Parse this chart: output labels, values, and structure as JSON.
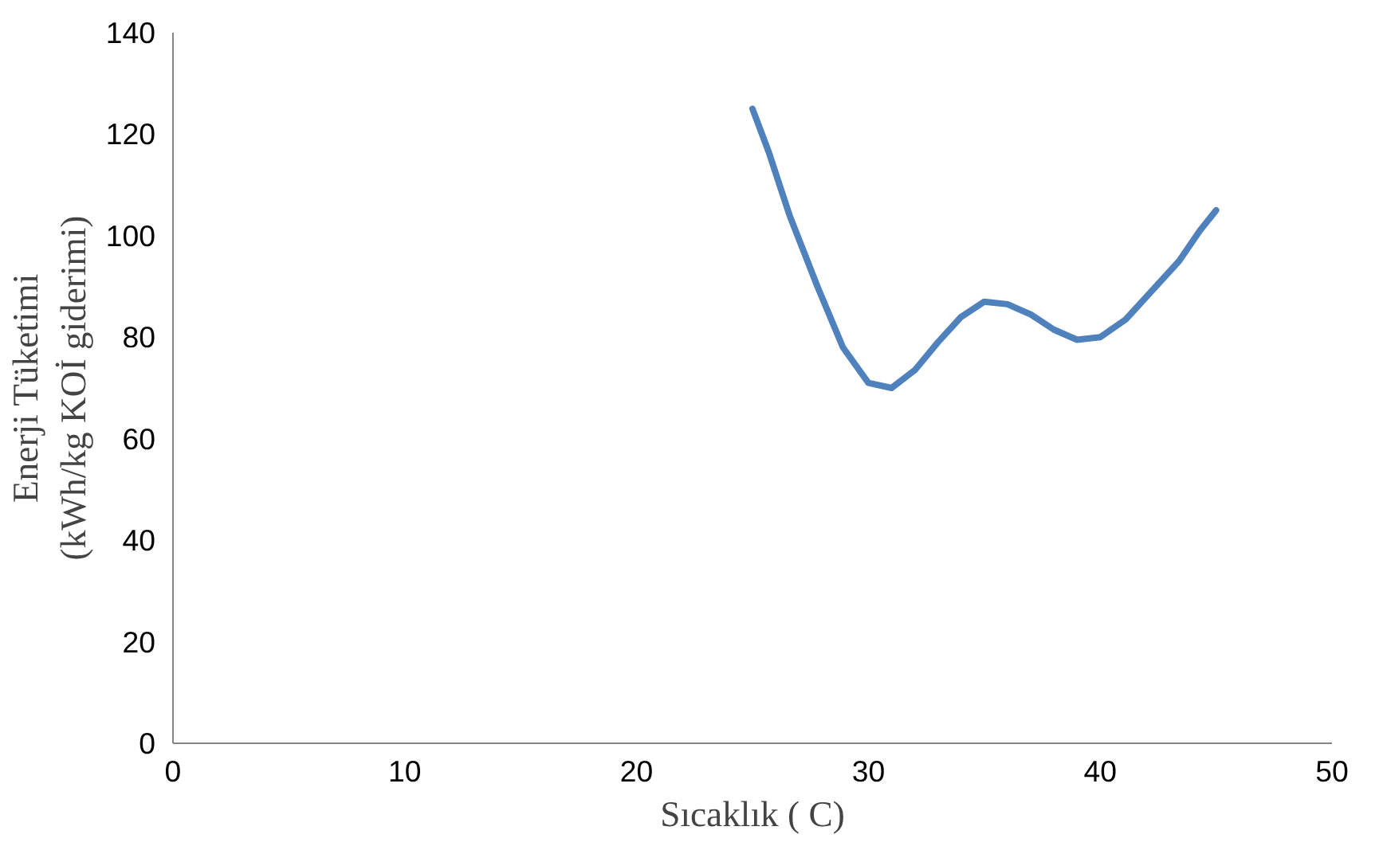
{
  "chart_data": {
    "type": "line",
    "xlabel": "Sıcaklık ( C)",
    "ylabel": "Enerji Tüketimi\n(kWh/kg KOİ giderimi)",
    "x": [
      25,
      25.7,
      26.6,
      27.8,
      28.9,
      30,
      31,
      32,
      33,
      34,
      35,
      36,
      37,
      38,
      39,
      40,
      41.1,
      42.2,
      43.4,
      44.3,
      45
    ],
    "series": [
      {
        "color": "#4f81bd",
        "values": [
          125,
          116.5,
          104,
          90,
          78,
          71,
          70,
          73.5,
          79,
          84,
          87,
          86.5,
          84.5,
          81.5,
          79.5,
          80,
          83.5,
          89,
          95,
          101,
          105
        ]
      }
    ],
    "xlim": [
      0,
      50
    ],
    "xticks": [
      0,
      10,
      20,
      30,
      40,
      50
    ],
    "ylim": [
      0,
      140
    ],
    "yticks": [
      0,
      20,
      40,
      60,
      80,
      100,
      120,
      140
    ],
    "grid": false,
    "marker": "none",
    "line_style": "solid"
  }
}
